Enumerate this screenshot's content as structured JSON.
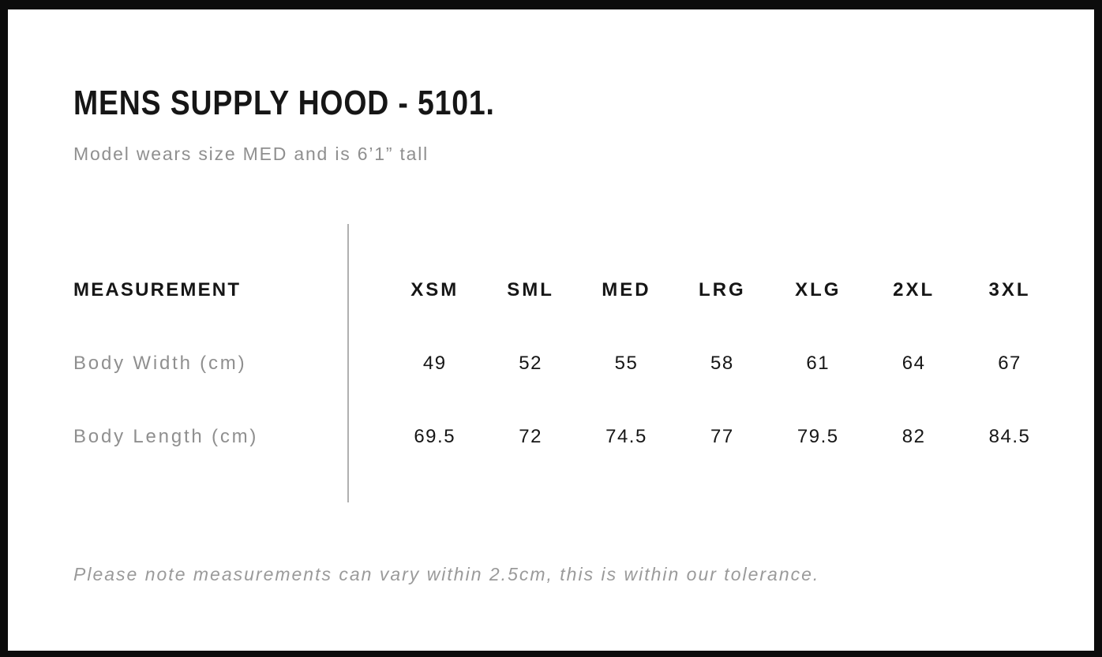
{
  "page": {
    "title": "MENS SUPPLY HOOD - 5101.",
    "subtitle": "Model wears size MED and is 6’1” tall",
    "footer_note": "Please note measurements can vary within 2.5cm, this is within our tolerance."
  },
  "size_table": {
    "measurement_header": "MEASUREMENT",
    "size_headers": [
      "XSM",
      "SML",
      "MED",
      "LRG",
      "XLG",
      "2XL",
      "3XL"
    ],
    "rows": [
      {
        "label": "Body Width (cm)",
        "values": [
          "49",
          "52",
          "55",
          "58",
          "61",
          "64",
          "67"
        ]
      },
      {
        "label": "Body Length (cm)",
        "values": [
          "69.5",
          "72",
          "74.5",
          "77",
          "79.5",
          "82",
          "84.5"
        ]
      }
    ]
  },
  "colors": {
    "background": "#ffffff",
    "frame_border": "#0c0c0c",
    "text_primary": "#161616",
    "text_muted": "#8f8f8f",
    "divider": "#b0b0b0"
  }
}
